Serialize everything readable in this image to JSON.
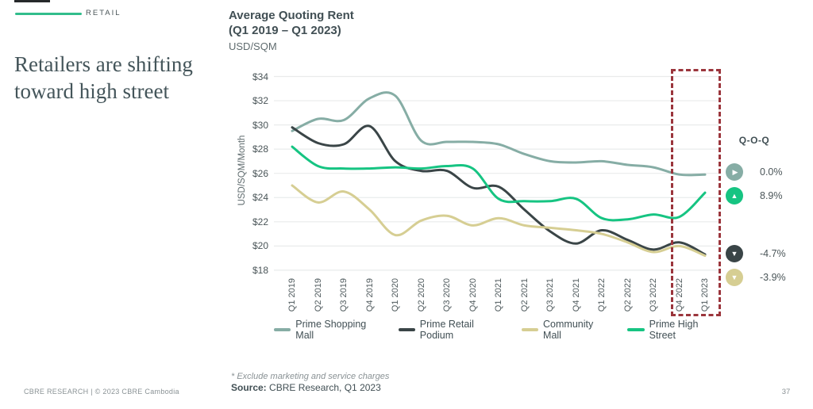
{
  "page": {
    "tag": "RETAIL",
    "headline_line1": "Retailers are shifting",
    "headline_line2": "toward high street",
    "footnote": "* Exclude marketing and service charges",
    "source_label": "Source:",
    "source_text": " CBRE Research, Q1 2023",
    "footer_left": "CBRE RESEARCH | © 2023 CBRE Cambodia",
    "page_number": "37"
  },
  "chart_data": {
    "type": "line",
    "title_line1": "Average Quoting Rent",
    "title_line2": "(Q1 2019 – Q1 2023)",
    "unit": "USD/SQM",
    "ylabel": "USD/SQM/Month",
    "ylim": [
      18,
      34
    ],
    "ytick_step": 2,
    "ytick_prefix": "$",
    "grid": "horizontal",
    "legend_position": "bottom",
    "categories": [
      "Q1 2019",
      "Q2 2019",
      "Q3 2019",
      "Q4 2019",
      "Q1 2020",
      "Q2 2020",
      "Q3 2020",
      "Q4 2020",
      "Q1 2021",
      "Q2 2021",
      "Q3 2021",
      "Q4 2021",
      "Q1 2022",
      "Q2 2022",
      "Q3 2022",
      "Q4 2022",
      "Q1 2023"
    ],
    "series": [
      {
        "name": "Prime Shopping Mall",
        "color": "#86ada5",
        "values": [
          29.5,
          30.5,
          30.4,
          32.2,
          32.4,
          28.7,
          28.6,
          28.6,
          28.4,
          27.6,
          27.0,
          26.9,
          27.0,
          26.7,
          26.5,
          25.9,
          25.9
        ]
      },
      {
        "name": "Prime Retail Podium",
        "color": "#3a4547",
        "values": [
          29.8,
          28.5,
          28.4,
          29.9,
          27.0,
          26.2,
          26.2,
          24.8,
          24.9,
          23.0,
          21.2,
          20.2,
          21.3,
          20.5,
          19.7,
          20.3,
          19.3
        ]
      },
      {
        "name": "Community Mall",
        "color": "#d6ce93",
        "values": [
          25.0,
          23.6,
          24.5,
          23.0,
          20.9,
          22.1,
          22.5,
          21.7,
          22.3,
          21.7,
          21.5,
          21.3,
          21.0,
          20.3,
          19.5,
          20.0,
          19.2
        ]
      },
      {
        "name": "Prime High Street",
        "color": "#16c482",
        "values": [
          28.2,
          26.6,
          26.4,
          26.4,
          26.5,
          26.4,
          26.6,
          26.4,
          23.9,
          23.7,
          23.7,
          23.9,
          22.3,
          22.2,
          22.6,
          22.4,
          24.4
        ]
      }
    ],
    "highlight": {
      "quarters": [
        "Q4 2022",
        "Q1 2023"
      ],
      "style": "dashed-red-box",
      "color": "#9b353c"
    }
  },
  "qoq": {
    "header": "Q-O-Q",
    "items": [
      {
        "series": "Prime Shopping Mall",
        "arrow": "right",
        "color": "#86ada5",
        "value": "0.0%"
      },
      {
        "series": "Prime High Street",
        "arrow": "up",
        "color": "#16c482",
        "value": "8.9%"
      },
      {
        "series": "Prime Retail Podium",
        "arrow": "down",
        "color": "#3a4547",
        "value": "-4.7%"
      },
      {
        "series": "Community Mall",
        "arrow": "down",
        "color": "#d6ce93",
        "value": "-3.9%"
      }
    ]
  }
}
